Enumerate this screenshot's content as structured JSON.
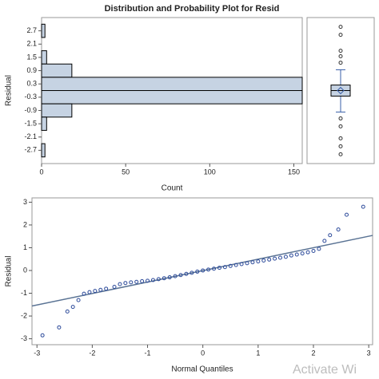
{
  "title": "Distribution and Probability Plot for Resid",
  "watermark": "Activate Wi",
  "chart_data": [
    {
      "type": "histogram",
      "orientation": "horizontal",
      "ylabel": "Residual",
      "xlabel": "Count",
      "bins": [
        3.0,
        2.4,
        1.8,
        1.2,
        0.6,
        0,
        -0.6,
        -1.2,
        -1.8,
        -2.4,
        -3.0
      ],
      "counts": [
        2,
        0,
        3,
        18,
        155,
        155,
        18,
        3,
        0,
        2
      ],
      "color": "#c6d3e3",
      "ylim": [
        -3.3,
        3.3
      ],
      "yticks": [
        2.7,
        2.1,
        1.5,
        0.9,
        0.3,
        -0.3,
        -0.9,
        -1.5,
        -2.1,
        -2.7
      ],
      "xlim": [
        0,
        155
      ],
      "xticks": [
        0,
        50,
        100,
        150
      ]
    },
    {
      "type": "box",
      "ylim": [
        -3.3,
        3.3
      ],
      "color": "#3a5fa8",
      "q1": -0.25,
      "median": 0,
      "q3": 0.25,
      "whisker_low": -0.97,
      "whisker_high": 0.94,
      "mean": 0,
      "outliers": [
        2.88,
        2.52,
        1.8,
        1.55,
        1.26,
        -1.26,
        -1.62,
        -2.16,
        -2.52,
        -2.88
      ]
    },
    {
      "type": "scatter",
      "xlabel": "Normal Quantiles",
      "ylabel": "Residual",
      "color": "#2c4a9a",
      "x": [
        -2.9,
        -2.6,
        -2.45,
        -2.35,
        -2.25,
        -2.15,
        -2.05,
        -1.95,
        -1.85,
        -1.75,
        -1.6,
        -1.5,
        -1.4,
        -1.3,
        -1.2,
        -1.1,
        -1.0,
        -0.9,
        -0.8,
        -0.7,
        -0.6,
        -0.5,
        -0.4,
        -0.3,
        -0.2,
        -0.1,
        0,
        0.1,
        0.2,
        0.3,
        0.4,
        0.5,
        0.6,
        0.7,
        0.8,
        0.9,
        1.0,
        1.1,
        1.2,
        1.3,
        1.4,
        1.5,
        1.6,
        1.7,
        1.8,
        1.9,
        2.0,
        2.1,
        2.2,
        2.3,
        2.45,
        2.6,
        2.9
      ],
      "y": [
        -2.85,
        -2.5,
        -1.8,
        -1.6,
        -1.3,
        -1.02,
        -0.95,
        -0.9,
        -0.85,
        -0.8,
        -0.72,
        -0.6,
        -0.55,
        -0.52,
        -0.5,
        -0.47,
        -0.45,
        -0.42,
        -0.38,
        -0.34,
        -0.3,
        -0.25,
        -0.2,
        -0.15,
        -0.1,
        -0.05,
        0,
        0.04,
        0.08,
        0.12,
        0.15,
        0.2,
        0.24,
        0.28,
        0.32,
        0.36,
        0.4,
        0.44,
        0.48,
        0.52,
        0.56,
        0.6,
        0.66,
        0.7,
        0.75,
        0.8,
        0.86,
        0.95,
        1.3,
        1.55,
        1.8,
        2.45,
        2.8
      ],
      "ref_line": {
        "color": "#5a7394",
        "x": [
          -3.09,
          3.07
        ],
        "y": [
          -1.56,
          1.54
        ]
      },
      "xlim": [
        -3.09,
        3.07
      ],
      "xticks": [
        -3,
        -2,
        -1,
        0,
        1,
        2,
        3
      ],
      "ylim": [
        -3.26,
        3.19
      ],
      "yticks": [
        -3,
        -2,
        -1,
        0,
        1,
        2,
        3
      ]
    }
  ]
}
